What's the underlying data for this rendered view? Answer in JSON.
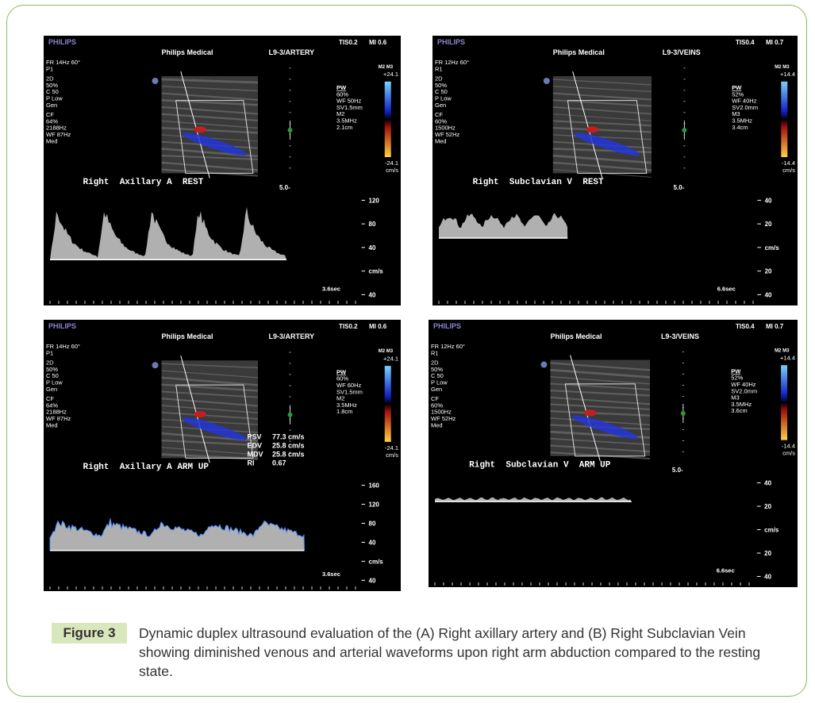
{
  "figure": {
    "panels": [
      {
        "brand": "PHILIPS",
        "tis": "TIS0.2",
        "mi": "MI 0.6",
        "maker": "Philips Medical",
        "probe": "L9-3/ARTERY",
        "params": [
          "FR 14Hz  60°",
          "P1",
          "2D",
          "50%",
          "C 50",
          "P Low",
          "Gen",
          "CF",
          "64%",
          "2188Hz",
          "WF  87Hz",
          "Med"
        ],
        "pw": [
          "PW",
          "60%",
          "WF 50Hz",
          "SV1.5mm",
          "M2",
          "3.5MHz",
          "2.1cm"
        ],
        "bar_mode": "M2 M3",
        "bar_top": "+24.1",
        "bar_bottom": "-24.1",
        "bar_unit": "cm/s",
        "depth": "5.0-",
        "label": "Right  Axillary A  REST",
        "scale": [
          "120",
          "80",
          "40",
          "cm/s",
          "40"
        ],
        "time": "3.6sec"
      },
      {
        "brand": "PHILIPS",
        "tis": "TIS0.4",
        "mi": "MI 0.7",
        "maker": "Philips Medical",
        "probe": "L9-3/VEINS",
        "params": [
          "FR 12Hz  60°",
          "R1",
          "2D",
          "50%",
          "C 50",
          "P Low",
          "Gen",
          "CF",
          "60%",
          "1500Hz",
          "WF  52Hz",
          "Med"
        ],
        "pw": [
          "PW",
          "52%",
          "WF 40Hz",
          "SV2.0mm",
          "M3",
          "3.5MHz",
          "3.4cm"
        ],
        "bar_mode": "M2 M3",
        "bar_top": "+14.4",
        "bar_bottom": "-14.4",
        "bar_unit": "cm/s",
        "depth": "5.0-",
        "label": "Right  Subclavian V  REST",
        "scale": [
          "40",
          "20",
          "cm/s",
          "20",
          "40"
        ],
        "time": "6.6sec"
      },
      {
        "brand": "PHILIPS",
        "tis": "TIS0.2",
        "mi": "MI 0.6",
        "maker": "Philips Medical",
        "probe": "L9-3/ARTERY",
        "params": [
          "FR 14Hz  60°",
          "P1",
          "2D",
          "50%",
          "C 50",
          "P Low",
          "Gen",
          "CF",
          "64%",
          "2188Hz",
          "WF  87Hz",
          "Med"
        ],
        "pw": [
          "PW",
          "60%",
          "WF 60Hz",
          "SV1.5mm",
          "M2",
          "3.5MHz",
          "1.8cm"
        ],
        "bar_mode": "M2 M3",
        "bar_top": "+24.1",
        "bar_bottom": "-24.1",
        "bar_unit": "cm/s",
        "label": "Right  Axillary A ARM UP",
        "measurements": [
          [
            "PSV",
            "77.3 cm/s"
          ],
          [
            "EDV",
            "25.8 cm/s"
          ],
          [
            "MDV",
            "25.8 cm/s"
          ],
          [
            "RI",
            "0.67"
          ]
        ],
        "scale": [
          "160",
          "120",
          "80",
          "40",
          "cm/s",
          "40"
        ],
        "time": "3.6sec"
      },
      {
        "brand": "PHILIPS",
        "tis": "TIS0.4",
        "mi": "MI 0.7",
        "maker": "Philips Medical",
        "probe": "L9-3/VEINS",
        "params": [
          "FR 12Hz  60°",
          "R1",
          "2D",
          "50%",
          "C 50",
          "P Low",
          "Gen",
          "CF",
          "60%",
          "1500Hz",
          "WF  52Hz",
          "Med"
        ],
        "pw": [
          "PW",
          "52%",
          "WF 40Hz",
          "SV2.0mm",
          "M3",
          "3.5MHz",
          "3.6cm"
        ],
        "bar_mode": "M2 M3",
        "bar_top": "+14.4",
        "bar_bottom": "-14.4",
        "bar_unit": "cm/s",
        "depth": "5.0-",
        "label": "Right  Subclavian V  ARM UP",
        "scale": [
          "40",
          "20",
          "cm/s",
          "20",
          "40"
        ],
        "time": "6.6sec"
      }
    ],
    "caption_label": "Figure 3",
    "caption": "Dynamic duplex ultrasound evaluation of the (A) Right axillary artery and (B) Right Subclavian Vein showing diminished venous and arterial waveforms upon right arm abduction compared to the resting state."
  }
}
